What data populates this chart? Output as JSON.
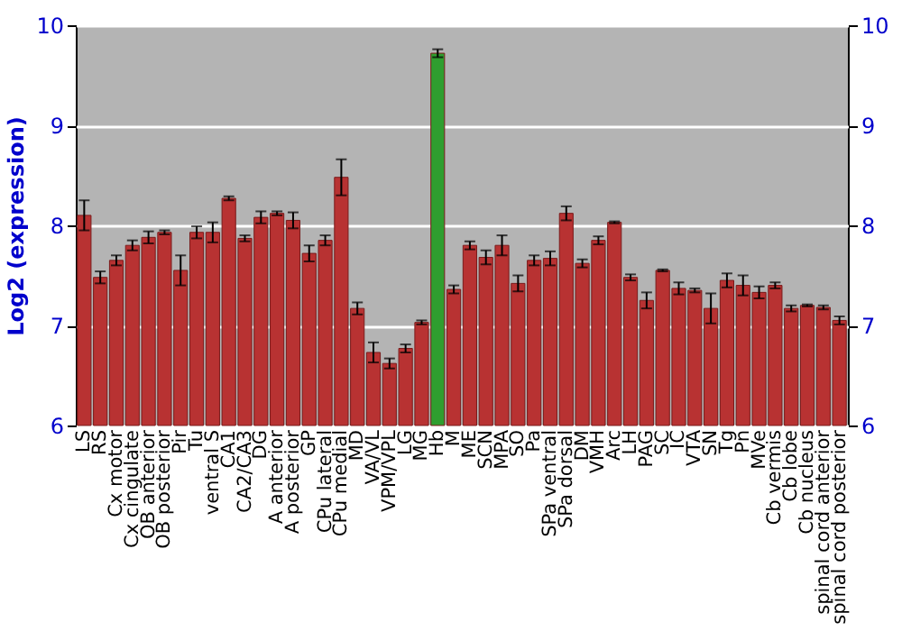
{
  "chart_data": {
    "type": "bar",
    "ylabel": "Log2 (expression)",
    "categories": [
      "LS",
      "RS",
      "Cx motor",
      "Cx cingulate",
      "OB anterior",
      "OB posterior",
      "Pir",
      "Tu",
      "ventral S",
      "CA1",
      "CA2/CA3",
      "DG",
      "A anterior",
      "A posterior",
      "GP",
      "CPu lateral",
      "CPu medial",
      "MD",
      "VA/VL",
      "VPM/VPL",
      "LG",
      "MG",
      "Hb",
      "M",
      "ME",
      "SCN",
      "MPA",
      "SO",
      "Pa",
      "SPa ventral",
      "SPa dorsal",
      "DM",
      "VMH",
      "Arc",
      "LH",
      "PAG",
      "SC",
      "IC",
      "VTA",
      "SN",
      "Tg",
      "Pn",
      "MVe",
      "Cb vermis",
      "Cb lobe",
      "Cb nucleus",
      "spinal cord anterior",
      "spinal cord posterior"
    ],
    "values": [
      8.1,
      7.48,
      7.65,
      7.8,
      7.88,
      7.93,
      7.55,
      7.93,
      7.93,
      8.27,
      7.87,
      8.08,
      8.12,
      8.05,
      7.72,
      7.85,
      8.48,
      7.17,
      6.73,
      6.62,
      6.77,
      7.03,
      9.72,
      7.36,
      7.8,
      7.68,
      7.8,
      7.42,
      7.65,
      7.67,
      8.12,
      7.62,
      7.85,
      8.03,
      7.48,
      7.25,
      7.55,
      7.37,
      7.35,
      7.17,
      7.45,
      7.4,
      7.33,
      7.4,
      7.17,
      7.2,
      7.18,
      7.05
    ],
    "errors": [
      0.15,
      0.06,
      0.05,
      0.05,
      0.06,
      0.02,
      0.15,
      0.06,
      0.1,
      0.02,
      0.03,
      0.06,
      0.02,
      0.08,
      0.08,
      0.05,
      0.18,
      0.06,
      0.1,
      0.05,
      0.04,
      0.02,
      0.04,
      0.04,
      0.04,
      0.07,
      0.1,
      0.08,
      0.05,
      0.07,
      0.07,
      0.04,
      0.04,
      0.01,
      0.03,
      0.08,
      0.01,
      0.06,
      0.02,
      0.15,
      0.07,
      0.1,
      0.06,
      0.03,
      0.03,
      0.01,
      0.02,
      0.04
    ],
    "colors": [
      "#b83232",
      "#b83232",
      "#b83232",
      "#b83232",
      "#b83232",
      "#b83232",
      "#b83232",
      "#b83232",
      "#b83232",
      "#b83232",
      "#b83232",
      "#b83232",
      "#b83232",
      "#b83232",
      "#b83232",
      "#b83232",
      "#b83232",
      "#b83232",
      "#b83232",
      "#b83232",
      "#b83232",
      "#b83232",
      "#2f9e2f",
      "#b83232",
      "#b83232",
      "#b83232",
      "#b83232",
      "#b83232",
      "#b83232",
      "#b83232",
      "#b83232",
      "#b83232",
      "#b83232",
      "#b83232",
      "#b83232",
      "#b83232",
      "#b83232",
      "#b83232",
      "#b83232",
      "#b83232",
      "#b83232",
      "#b83232",
      "#b83232",
      "#b83232",
      "#b83232",
      "#b83232",
      "#b83232",
      "#b83232"
    ],
    "ylim": [
      6,
      10
    ],
    "yticks": [
      6,
      7,
      8,
      9,
      10
    ],
    "y2lim": [
      6,
      10
    ],
    "y2ticks": [
      6,
      7,
      8,
      9,
      10
    ],
    "grid": "y"
  }
}
